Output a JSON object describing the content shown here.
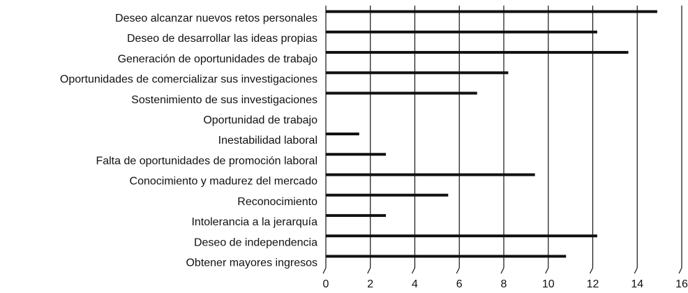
{
  "chart_data": {
    "type": "hbar",
    "categories": [
      "Deseo alcanzar nuevos retos personales",
      "Deseo de desarrollar las ideas propias",
      "Generación de  oportunidades de trabajo",
      "Oportunidades de comercializar sus investigaciones",
      "Sostenimiento de sus investigaciones",
      "Oportunidad de trabajo",
      "Inestabilidad laboral",
      "Falta de oportunidades de promoción laboral",
      "Conocimiento y madurez del mercado",
      "Reconocimiento",
      "Intolerancia a la jerarquía",
      "Deseo de independencia",
      "Obtener mayores ingresos"
    ],
    "values": [
      14.9,
      12.2,
      13.6,
      8.2,
      6.8,
      0,
      1.5,
      2.7,
      9.4,
      5.5,
      2.7,
      12.2,
      10.8
    ],
    "color": "#111111",
    "xlim": [
      0,
      16
    ],
    "xticks": [
      0,
      2,
      4,
      6,
      8,
      10,
      12,
      14,
      16
    ],
    "grid": true
  }
}
